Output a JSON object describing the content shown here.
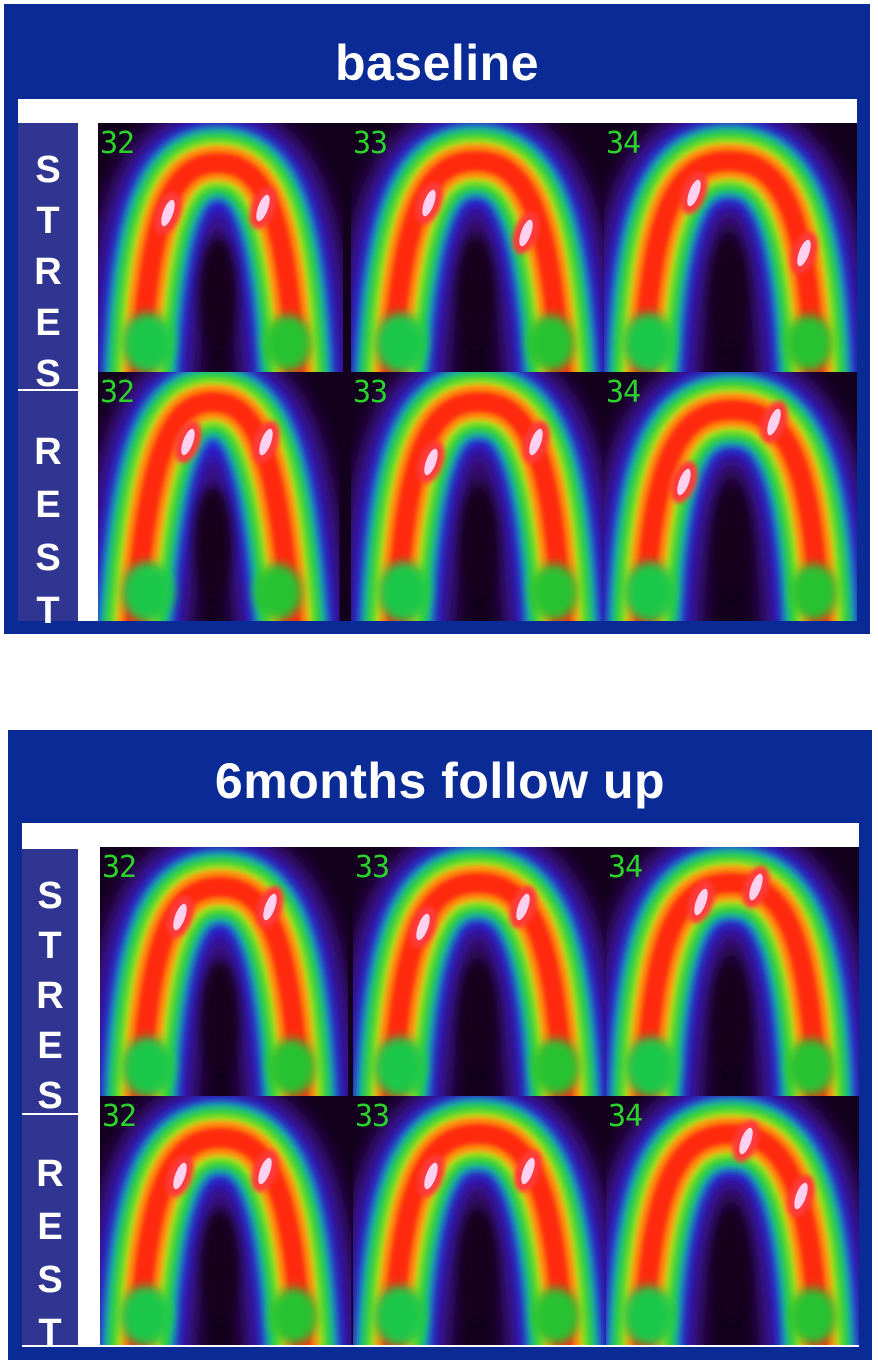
{
  "panels": [
    {
      "title": "baseline",
      "rows": [
        {
          "label": "STRES",
          "letters": [
            "S",
            "T",
            "R",
            "E",
            "S"
          ],
          "slices": [
            "32",
            "33",
            "34"
          ]
        },
        {
          "label": "REST",
          "letters": [
            "R",
            "E",
            "S",
            "T"
          ],
          "slices": [
            "32",
            "33",
            "34"
          ]
        }
      ]
    },
    {
      "title": "6months follow up",
      "rows": [
        {
          "label": "STRES",
          "letters": [
            "S",
            "T",
            "R",
            "E",
            "S"
          ],
          "slices": [
            "32",
            "33",
            "34"
          ]
        },
        {
          "label": "REST",
          "letters": [
            "R",
            "E",
            "S",
            "T"
          ],
          "slices": [
            "32",
            "33",
            "34"
          ]
        }
      ]
    }
  ],
  "colors": {
    "panel_bg": "#0a2a96",
    "label_bg": "#2f3591",
    "slice_number": "#2ad32a"
  }
}
